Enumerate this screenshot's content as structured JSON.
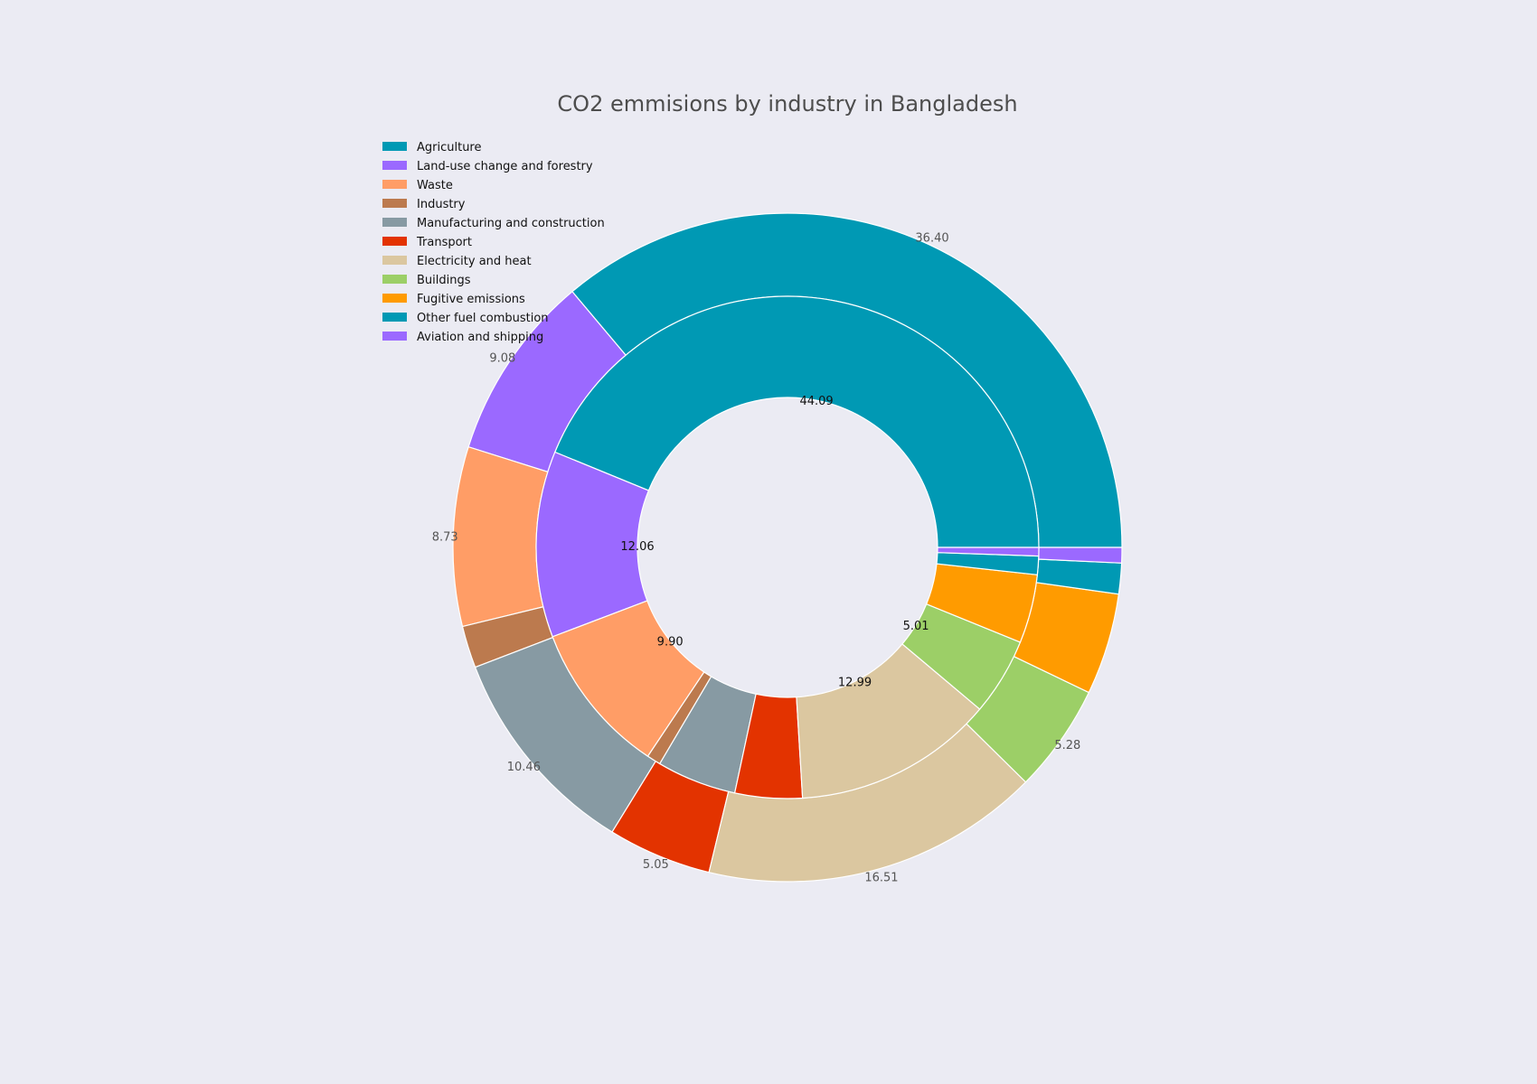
{
  "chart_data": {
    "type": "pie",
    "title": "CO2 emmisions by industry in Bangladesh",
    "legend_position": "top-left",
    "inner_ring": {
      "slices": [
        {
          "name": "Agriculture",
          "value": 44.09,
          "label": "44.09",
          "color": "#0099b4"
        },
        {
          "name": "Land-use change and forestry",
          "value": 12.06,
          "label": "12.06",
          "color": "#9b69ff"
        },
        {
          "name": "Waste",
          "value": 9.9,
          "label": "9.90",
          "color": "#ff9d66"
        },
        {
          "name": "Industry",
          "value": 0.9,
          "label": "",
          "color": "#bc7a4e"
        },
        {
          "name": "Manufacturing and construction",
          "value": 5.15,
          "label": "",
          "color": "#879aa3"
        },
        {
          "name": "Transport",
          "value": 4.35,
          "label": "",
          "color": "#e33300"
        },
        {
          "name": "Electricity and heat",
          "value": 12.99,
          "label": "12.99",
          "color": "#dbc7a0"
        },
        {
          "name": "Buildings",
          "value": 5.01,
          "label": "5.01",
          "color": "#9ccf67"
        },
        {
          "name": "Fugitive emissions",
          "value": 4.45,
          "label": "",
          "color": "#ff9b00"
        },
        {
          "name": "Other fuel combustion",
          "value": 1.2,
          "label": "",
          "color": "#0099b4"
        },
        {
          "name": "Aviation and shipping",
          "value": 0.55,
          "label": "",
          "color": "#9b69ff"
        }
      ]
    },
    "outer_ring": {
      "slices": [
        {
          "name": "Agriculture",
          "value": 36.4,
          "label": "36.40",
          "color": "#0099b4"
        },
        {
          "name": "Land-use change and forestry",
          "value": 9.08,
          "label": "9.08",
          "color": "#9b69ff"
        },
        {
          "name": "Waste",
          "value": 8.73,
          "label": "8.73",
          "color": "#ff9d66"
        },
        {
          "name": "Industry",
          "value": 2.05,
          "label": "",
          "color": "#bc7a4e"
        },
        {
          "name": "Manufacturing and construction",
          "value": 10.46,
          "label": "10.46",
          "color": "#879aa3"
        },
        {
          "name": "Transport",
          "value": 5.05,
          "label": "5.05",
          "color": "#e33300"
        },
        {
          "name": "Electricity and heat",
          "value": 16.51,
          "label": "16.51",
          "color": "#dbc7a0"
        },
        {
          "name": "Buildings",
          "value": 5.28,
          "label": "5.28",
          "color": "#9ccf67"
        },
        {
          "name": "Fugitive emissions",
          "value": 4.95,
          "label": "",
          "color": "#ff9b00"
        },
        {
          "name": "Other fuel combustion",
          "value": 1.5,
          "label": "",
          "color": "#0099b4"
        },
        {
          "name": "Aviation and shipping",
          "value": 0.75,
          "label": "",
          "color": "#9b69ff"
        }
      ]
    },
    "legend": [
      {
        "label": "Agriculture",
        "color": "#0099b4"
      },
      {
        "label": "Land-use change and forestry",
        "color": "#9b69ff"
      },
      {
        "label": "Waste",
        "color": "#ff9d66"
      },
      {
        "label": "Industry",
        "color": "#bc7a4e"
      },
      {
        "label": "Manufacturing and construction",
        "color": "#879aa3"
      },
      {
        "label": "Transport",
        "color": "#e33300"
      },
      {
        "label": "Electricity and heat",
        "color": "#dbc7a0"
      },
      {
        "label": "Buildings",
        "color": "#9ccf67"
      },
      {
        "label": "Fugitive emissions",
        "color": "#ff9b00"
      },
      {
        "label": "Other fuel combustion",
        "color": "#0099b4"
      },
      {
        "label": "Aviation and shipping",
        "color": "#9b69ff"
      }
    ]
  }
}
